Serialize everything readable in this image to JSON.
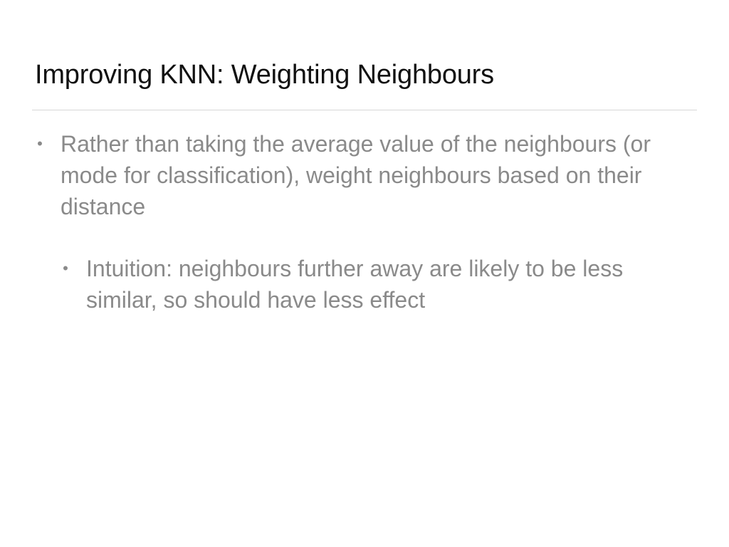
{
  "slide": {
    "title": "Improving KNN: Weighting Neighbours",
    "bullets": [
      {
        "marker": "•",
        "text": "Rather than taking the average value of the neighbours (or mode for classification), weight neighbours based on their distance"
      },
      {
        "marker": "•",
        "text": "Intuition: neighbours further away are likely to be less similar, so should have less effect"
      }
    ]
  },
  "colors": {
    "background": "#ffffff",
    "title": "#111111",
    "body_text": "#8a8a8a",
    "divider": "#d6d6d6"
  }
}
